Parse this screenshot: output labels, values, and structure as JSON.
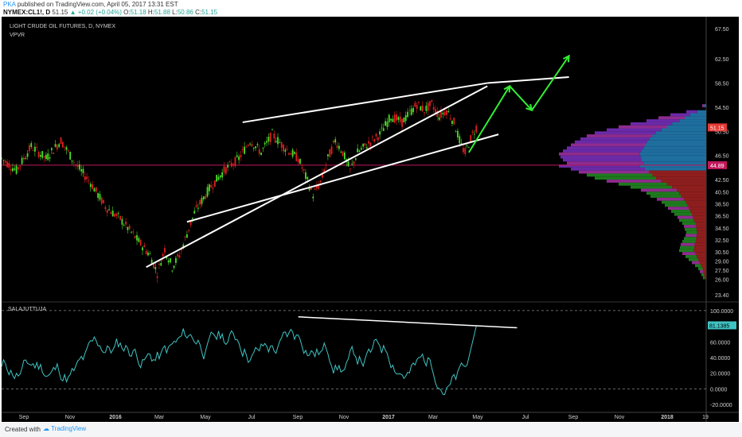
{
  "header": {
    "publisher": "PKA",
    "published_text": "published on TradingView.com, April 05, 2017 13:31 EST",
    "symbol": "NYMEX:CL1!, D",
    "last": "51.15",
    "change": "+0.02 (+0.04%)",
    "ohlc": {
      "o": "51.18",
      "h": "51.88",
      "l": "50.86",
      "c": "51.15"
    }
  },
  "footer": {
    "created_label": "Created with",
    "brand": "TradingView"
  },
  "chart_data": [
    {
      "type": "candlestick",
      "title": "LIGHT CRUDE OIL FUTURES, D, NYMEX",
      "indicator_label": "VPVR",
      "y_ticks": [
        "67.50",
        "62.50",
        "58.50",
        "54.50",
        "50.50",
        "46.50",
        "42.50",
        "40.50",
        "38.50",
        "36.50",
        "34.50",
        "32.50",
        "30.50",
        "29.00",
        "27.50",
        "26.00",
        "23.40"
      ],
      "y_tick_values": [
        67.5,
        62.5,
        58.5,
        54.5,
        50.5,
        46.5,
        42.5,
        40.5,
        38.5,
        36.5,
        34.5,
        32.5,
        30.5,
        29.0,
        27.5,
        26.0,
        23.4
      ],
      "current_price": "51.15",
      "reference_price": "44.89",
      "x_ticks": [
        "Sep",
        "Nov",
        "2016",
        "Mar",
        "May",
        "Jul",
        "Sep",
        "Nov",
        "2017",
        "Mar",
        "May",
        "Jul",
        "Sep",
        "Nov",
        "2018",
        "19"
      ],
      "price_path": [
        [
          0,
          46
        ],
        [
          4,
          44
        ],
        [
          8,
          48
        ],
        [
          12,
          46
        ],
        [
          16,
          49
        ],
        [
          20,
          45
        ],
        [
          24,
          42
        ],
        [
          28,
          38
        ],
        [
          32,
          36
        ],
        [
          36,
          33
        ],
        [
          40,
          30
        ],
        [
          42,
          27
        ],
        [
          44,
          31
        ],
        [
          46,
          28
        ],
        [
          48,
          30
        ],
        [
          52,
          37
        ],
        [
          56,
          41
        ],
        [
          60,
          44
        ],
        [
          64,
          46
        ],
        [
          67,
          49
        ],
        [
          70,
          47
        ],
        [
          73,
          50
        ],
        [
          76,
          48
        ],
        [
          80,
          46
        ],
        [
          82,
          43
        ],
        [
          84,
          40
        ],
        [
          86,
          42
        ],
        [
          88,
          46
        ],
        [
          90,
          49
        ],
        [
          92,
          47
        ],
        [
          94,
          44
        ],
        [
          96,
          47
        ],
        [
          98,
          48
        ],
        [
          102,
          50
        ],
        [
          105,
          53
        ],
        [
          108,
          52
        ],
        [
          112,
          55
        ],
        [
          114,
          54
        ],
        [
          116,
          55
        ],
        [
          118,
          53
        ],
        [
          120,
          54
        ],
        [
          122,
          52
        ],
        [
          124,
          48
        ],
        [
          125,
          47
        ],
        [
          127,
          50
        ],
        [
          128,
          51.15
        ]
      ],
      "trendlines": [
        {
          "from": [
            65,
            52
          ],
          "to": [
            131,
            58.5
          ],
          "color": "#ffffff"
        },
        {
          "from": [
            50,
            35.5
          ],
          "to": [
            134,
            50
          ],
          "color": "#ffffff"
        },
        {
          "from": [
            39,
            28
          ],
          "to": [
            131,
            58
          ],
          "color": "#ffffff"
        },
        {
          "from": [
            131,
            58.5
          ],
          "to": [
            153,
            59.5
          ],
          "color": "#ffffff"
        }
      ],
      "projection_arrows": [
        {
          "from": [
            126,
            47
          ],
          "to": [
            137,
            58
          ],
          "color": "#33ee33"
        },
        {
          "from": [
            137,
            58
          ],
          "to": [
            143,
            54
          ],
          "color": "#33ee33"
        },
        {
          "from": [
            143,
            54
          ],
          "to": [
            153,
            63
          ],
          "color": "#33ee33"
        }
      ]
    },
    {
      "type": "line",
      "title": "SALAJUTTUJA",
      "y_ticks": [
        "100.0000",
        "60.0000",
        "40.0000",
        "20.0000",
        "0.0000",
        "-20.0000"
      ],
      "y_tick_values": [
        100,
        60,
        40,
        20,
        0,
        -20
      ],
      "current_value": "81.1385",
      "line_color": "#3fc3c3",
      "dashed_levels": [
        100,
        0
      ],
      "trendline": {
        "from": [
          80,
          92
        ],
        "to": [
          139,
          78
        ],
        "color": "#ffffff"
      }
    }
  ]
}
